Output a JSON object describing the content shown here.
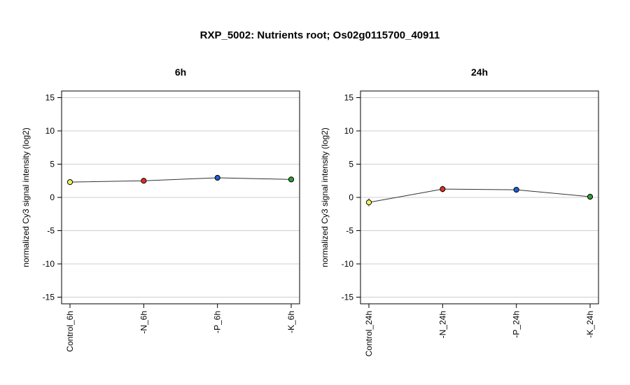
{
  "title": "RXP_5002: Nutrients root; Os02g0115700_40911",
  "chart_data": [
    {
      "type": "line",
      "title": "6h",
      "xlabel": "",
      "ylabel": "normalized Cy3 signal intensity (log2)",
      "ylim": [
        -16,
        16
      ],
      "yticks": [
        -15,
        -10,
        -5,
        0,
        5,
        10,
        15
      ],
      "grid": true,
      "categories": [
        "Control_6h",
        "-N_6h",
        "-P_6h",
        "-K_6h"
      ],
      "values": [
        2.3,
        2.5,
        2.95,
        2.7
      ],
      "errors": [
        0.15,
        0.15,
        0.15,
        0.15
      ],
      "colors": [
        "#f0f060",
        "#e03020",
        "#2060d0",
        "#30a030"
      ]
    },
    {
      "type": "line",
      "title": "24h",
      "xlabel": "",
      "ylabel": "normalized Cy3 signal intensity (log2)",
      "ylim": [
        -16,
        16
      ],
      "yticks": [
        -15,
        -10,
        -5,
        0,
        5,
        10,
        15
      ],
      "grid": true,
      "categories": [
        "Control_24h",
        "-N_24h",
        "-P_24h",
        "-K_24h"
      ],
      "values": [
        -0.75,
        1.25,
        1.15,
        0.1
      ],
      "errors": [
        0.6,
        0.5,
        0.2,
        0.45
      ],
      "colors": [
        "#f0f060",
        "#e03020",
        "#2060d0",
        "#30a030"
      ]
    }
  ]
}
